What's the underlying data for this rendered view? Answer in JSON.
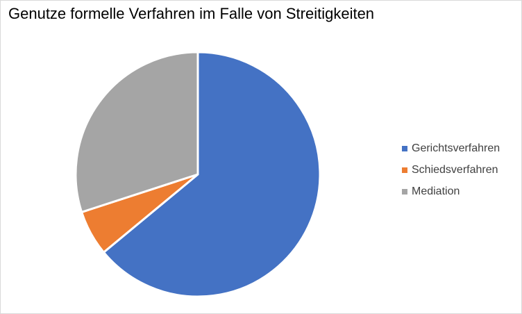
{
  "chart_data": {
    "type": "pie",
    "title": "Genutze formelle Verfahren im Falle von Streitigkeiten",
    "categories": [
      "Gerichtsverfahren",
      "Schiedsverfahren",
      "Mediation"
    ],
    "values": [
      64,
      6,
      30
    ],
    "colors": [
      "#4472C4",
      "#ED7D31",
      "#A5A5A5"
    ],
    "start_angle_deg": 0,
    "direction": "clockwise",
    "legend_position": "right"
  }
}
